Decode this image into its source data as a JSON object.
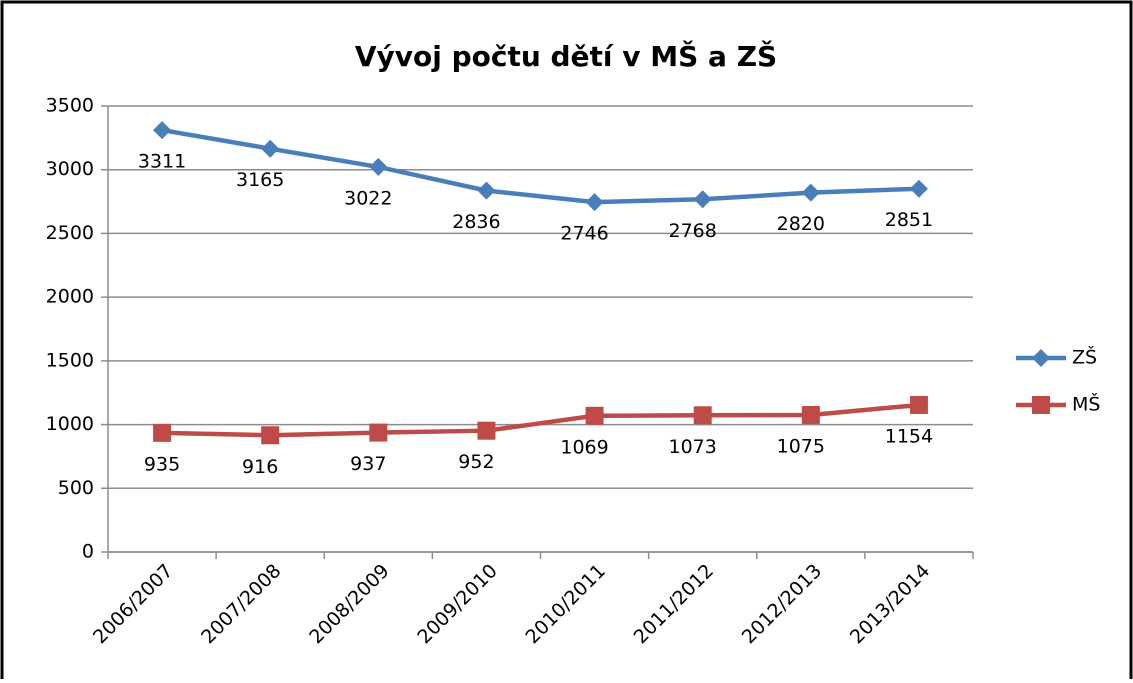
{
  "chart_data": {
    "type": "line",
    "title": "Vývoj počtu dětí v MŠ a ZŠ",
    "categories": [
      "2006/2007",
      "2007/2008",
      "2008/2009",
      "2009/2010",
      "2010/2011",
      "2011/2012",
      "2012/2013",
      "2013/2014"
    ],
    "series": [
      {
        "name": "ZŠ",
        "color": "#4a7ebb",
        "marker": "diamond",
        "values": [
          3311,
          3165,
          3022,
          2836,
          2746,
          2768,
          2820,
          2851
        ]
      },
      {
        "name": "MŠ",
        "color": "#be4b48",
        "marker": "square",
        "values": [
          935,
          916,
          937,
          952,
          1069,
          1073,
          1075,
          1154
        ]
      }
    ],
    "ylim": [
      0,
      3500
    ],
    "yticks": [
      0,
      500,
      1000,
      1500,
      2000,
      2500,
      3000,
      3500
    ],
    "grid": true,
    "legend": "right"
  }
}
